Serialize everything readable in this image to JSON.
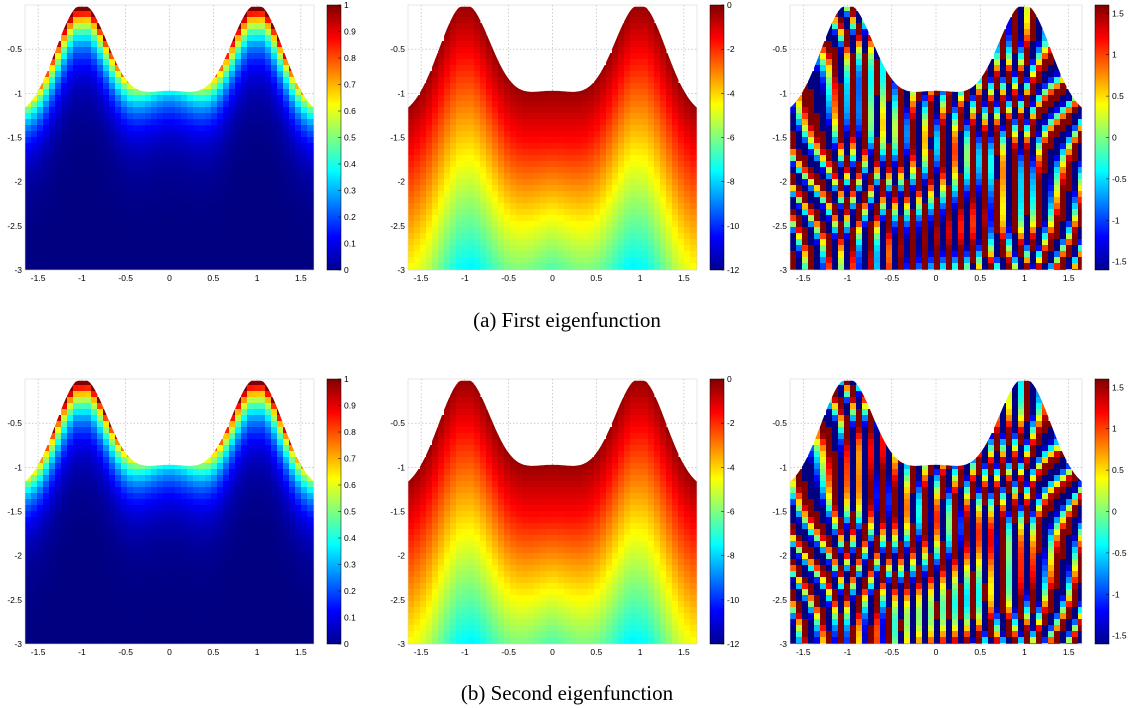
{
  "captions": {
    "a": "(a) First eigenfunction",
    "b": "(b) Second eigenfunction"
  },
  "chart_data": [
    {
      "type": "heatmap",
      "row": "a",
      "quantity": "modulus",
      "x_ticks": [
        "-1.5",
        "-1",
        "-0.5",
        "0",
        "0.5",
        "1",
        "1.5"
      ],
      "y_ticks": [
        "-0.5",
        "-1",
        "-1.5",
        "-2",
        "-2.5",
        "-3"
      ],
      "colorbar_ticks": [
        "1",
        "0.9",
        "0.8",
        "0.7",
        "0.6",
        "0.5",
        "0.4",
        "0.3",
        "0.2",
        "0.1",
        "0"
      ],
      "xlim": [
        -1.65,
        1.65
      ],
      "ylim": [
        -3,
        0
      ],
      "clim": [
        0,
        1
      ],
      "colormap": "jet",
      "grid": true
    },
    {
      "type": "heatmap",
      "row": "a",
      "quantity": "log-modulus",
      "x_ticks": [
        "-1.5",
        "-1",
        "-0.5",
        "0",
        "0.5",
        "1",
        "1.5"
      ],
      "y_ticks": [
        "-0.5",
        "-1",
        "-1.5",
        "-2",
        "-2.5",
        "-3"
      ],
      "colorbar_ticks": [
        "0",
        "-2",
        "-4",
        "-6",
        "-8",
        "-10",
        "-12"
      ],
      "xlim": [
        -1.65,
        1.65
      ],
      "ylim": [
        -3,
        0
      ],
      "clim": [
        -12,
        0
      ],
      "colormap": "jet",
      "grid": true
    },
    {
      "type": "heatmap",
      "row": "a",
      "quantity": "phase",
      "x_ticks": [
        "-1.5",
        "-1",
        "-0.5",
        "0",
        "0.5",
        "1",
        "1.5"
      ],
      "y_ticks": [
        "-0.5",
        "-1",
        "-1.5",
        "-2",
        "-2.5",
        "-3"
      ],
      "colorbar_ticks": [
        "1.5",
        "1",
        "0.5",
        "0",
        "-0.5",
        "-1",
        "-1.5"
      ],
      "xlim": [
        -1.65,
        1.65
      ],
      "ylim": [
        -3,
        0
      ],
      "clim": [
        -1.6,
        1.6
      ],
      "colormap": "jet",
      "grid": true
    },
    {
      "type": "heatmap",
      "row": "b",
      "quantity": "modulus",
      "x_ticks": [
        "-1.5",
        "-1",
        "-0.5",
        "0",
        "0.5",
        "1",
        "1.5"
      ],
      "y_ticks": [
        "-0.5",
        "-1",
        "-1.5",
        "-2",
        "-2.5",
        "-3"
      ],
      "colorbar_ticks": [
        "1",
        "0.9",
        "0.8",
        "0.7",
        "0.6",
        "0.5",
        "0.4",
        "0.3",
        "0.2",
        "0.1",
        "0"
      ],
      "xlim": [
        -1.65,
        1.65
      ],
      "ylim": [
        -3,
        0
      ],
      "clim": [
        0,
        1
      ],
      "colormap": "jet",
      "grid": true
    },
    {
      "type": "heatmap",
      "row": "b",
      "quantity": "log-modulus",
      "x_ticks": [
        "-1.5",
        "-1",
        "-0.5",
        "0",
        "0.5",
        "1",
        "1.5"
      ],
      "y_ticks": [
        "-0.5",
        "-1",
        "-1.5",
        "-2",
        "-2.5",
        "-3"
      ],
      "colorbar_ticks": [
        "0",
        "-2",
        "-4",
        "-6",
        "-8",
        "-10",
        "-12"
      ],
      "xlim": [
        -1.65,
        1.65
      ],
      "ylim": [
        -3,
        0
      ],
      "clim": [
        -12,
        0
      ],
      "colormap": "jet",
      "grid": true
    },
    {
      "type": "heatmap",
      "row": "b",
      "quantity": "phase",
      "x_ticks": [
        "-1.5",
        "-1",
        "-0.5",
        "0",
        "0.5",
        "1",
        "1.5"
      ],
      "y_ticks": [
        "-0.5",
        "-1",
        "-1.5",
        "-2",
        "-2.5",
        "-3"
      ],
      "colorbar_ticks": [
        "1.5",
        "1",
        "0.5",
        "0",
        "-0.5",
        "-1",
        "-1.5"
      ],
      "xlim": [
        -1.65,
        1.65
      ],
      "ylim": [
        -3,
        0
      ],
      "clim": [
        -1.6,
        1.6
      ],
      "colormap": "jet",
      "grid": true
    }
  ]
}
